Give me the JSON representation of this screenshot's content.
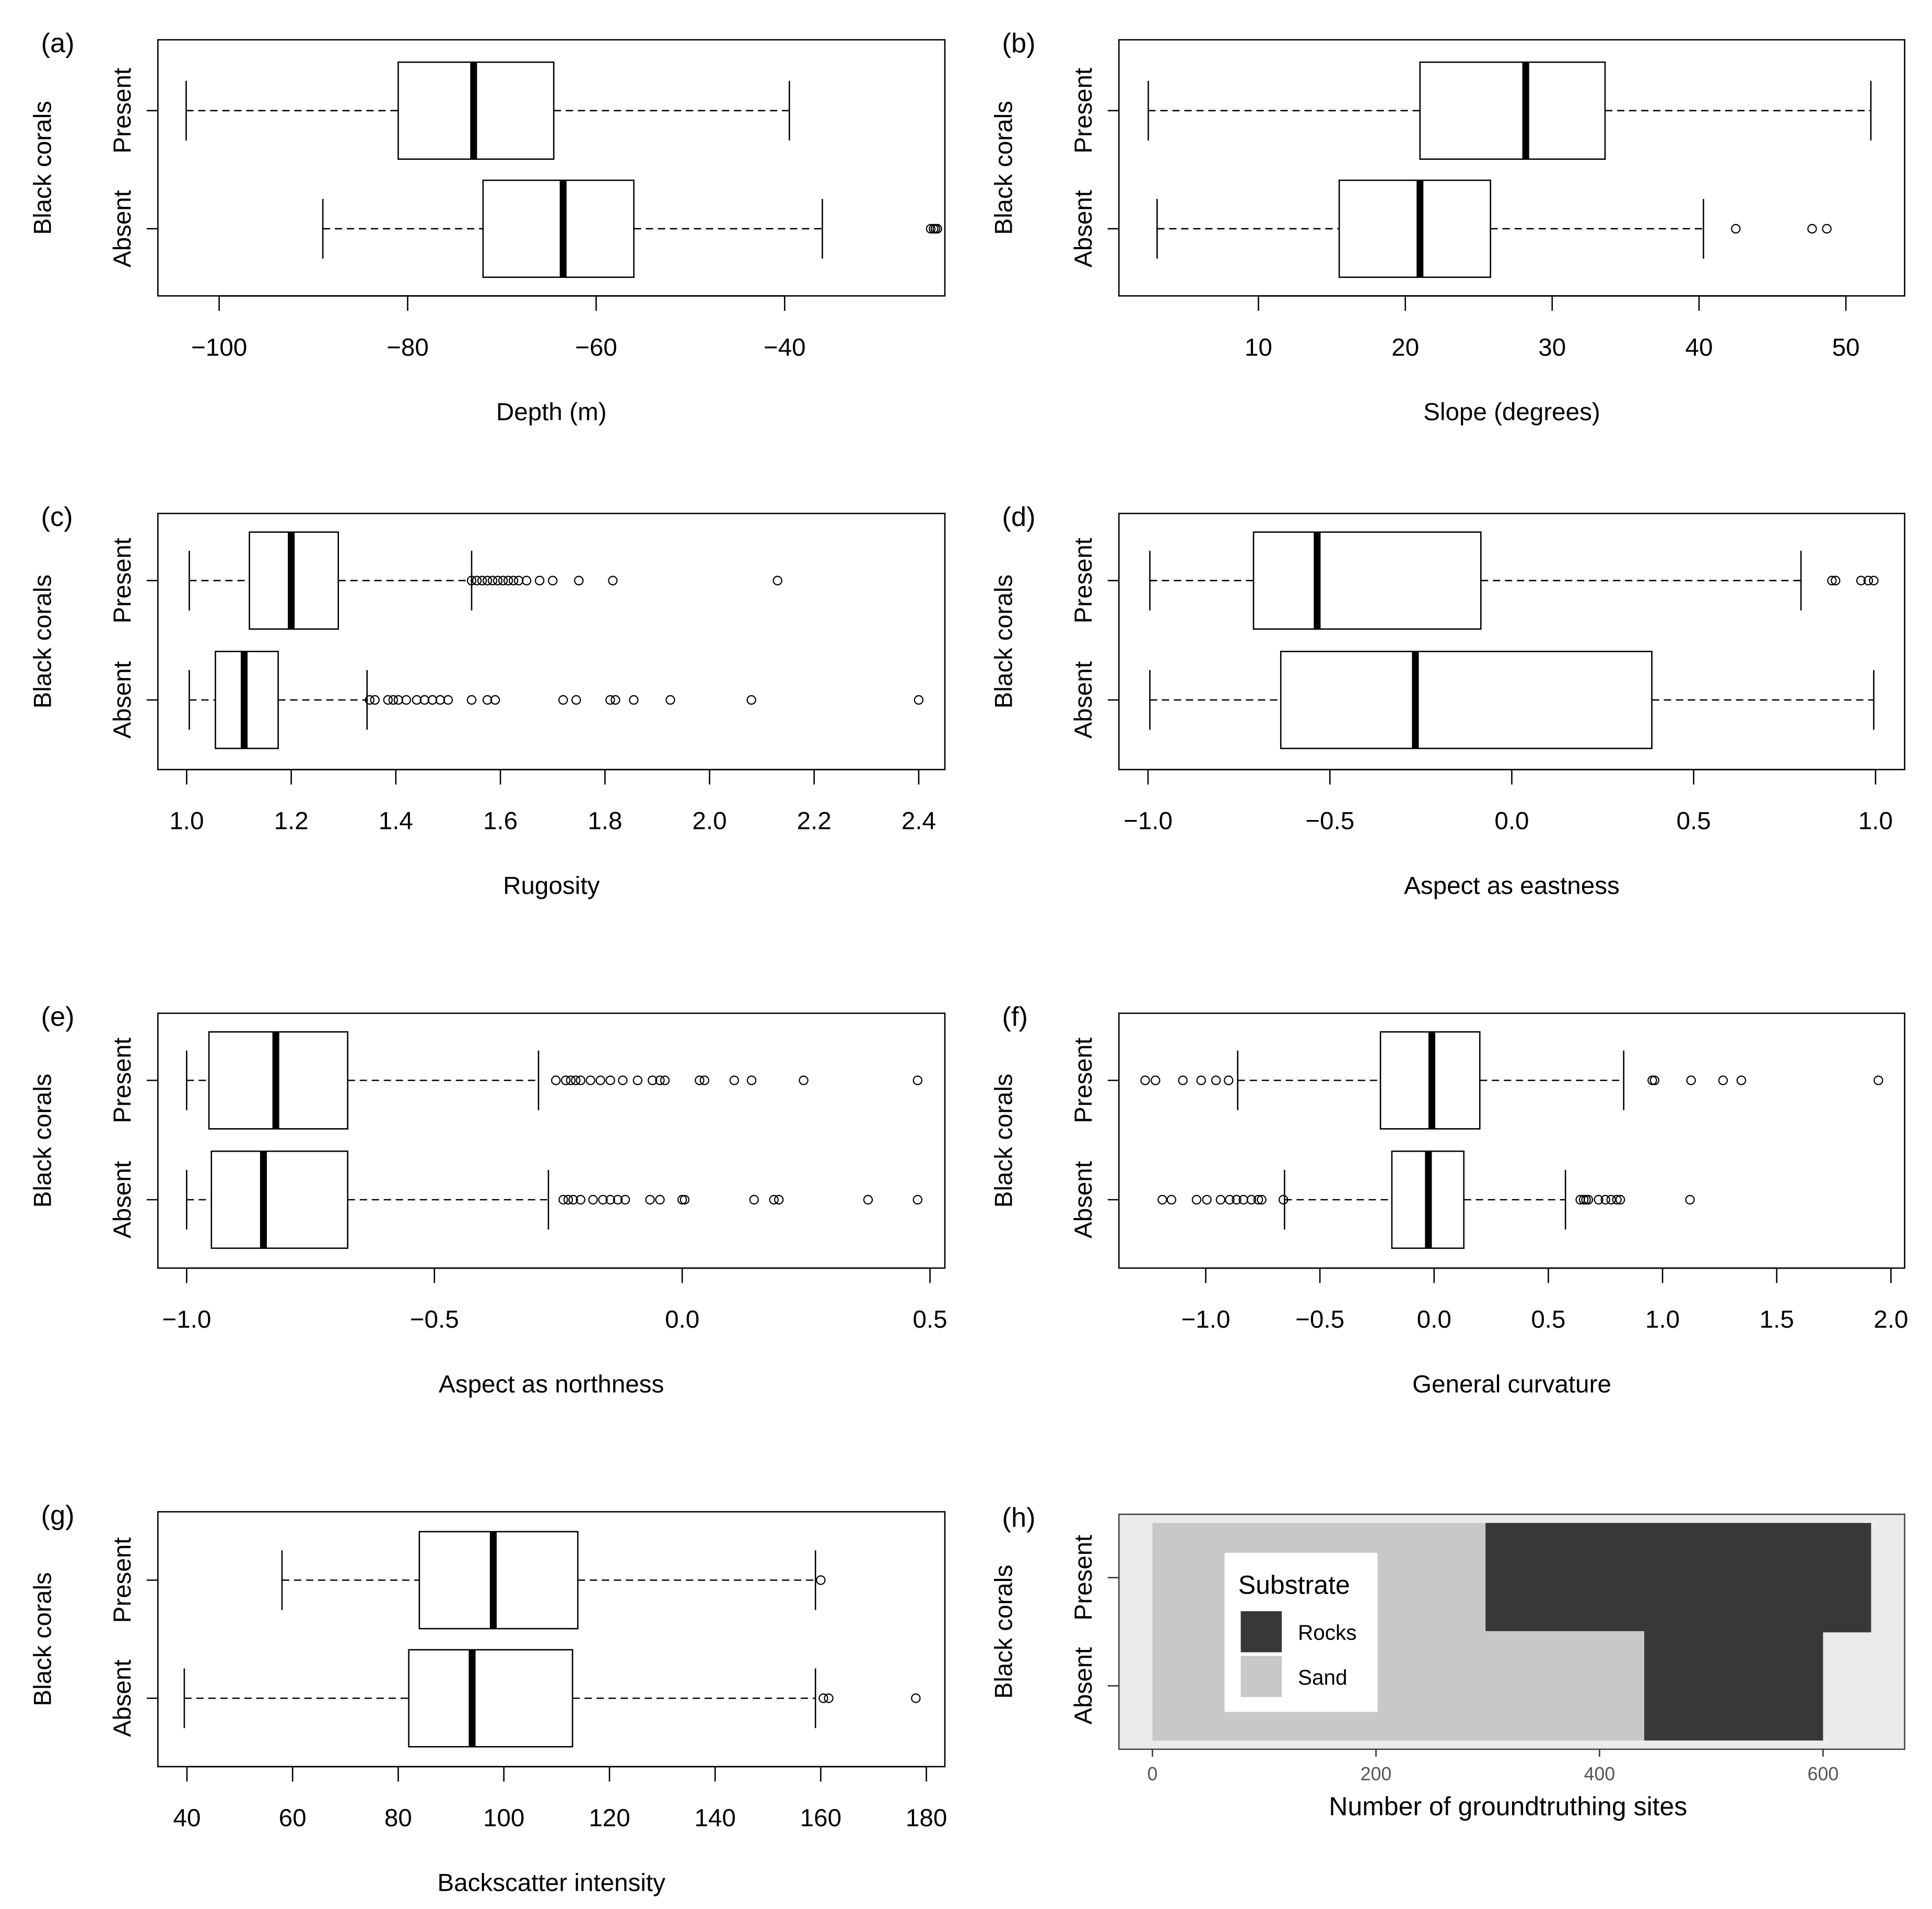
{
  "chart_data": [
    {
      "type": "boxplot",
      "panel_label": "(a)",
      "xlabel": "Depth (m)",
      "ylabel": "Black corals",
      "categories": [
        "Present",
        "Absent"
      ],
      "xlim": [
        -106.5,
        -23
      ],
      "xticks": [
        -100,
        -80,
        -60,
        -40
      ],
      "xtick_labels": [
        "−100",
        "−80",
        "−60",
        "−40"
      ],
      "boxes": [
        {
          "group": "Present",
          "whisker_low": -103.5,
          "q1": -81,
          "median": -73,
          "q3": -64.5,
          "whisker_high": -39.5,
          "outliers": []
        },
        {
          "group": "Absent",
          "whisker_low": -89,
          "q1": -72,
          "median": -63.5,
          "q3": -56,
          "whisker_high": -36,
          "outliers": [
            -24.5,
            -24.2,
            -24.0,
            -23.8
          ]
        }
      ]
    },
    {
      "type": "boxplot",
      "panel_label": "(b)",
      "xlabel": "Slope (degrees)",
      "ylabel": "Black corals",
      "categories": [
        "Present",
        "Absent"
      ],
      "xlim": [
        0.5,
        54
      ],
      "xticks": [
        10,
        20,
        30,
        40,
        50
      ],
      "xtick_labels": [
        "10",
        "20",
        "30",
        "40",
        "50"
      ],
      "boxes": [
        {
          "group": "Present",
          "whisker_low": 2.5,
          "q1": 21,
          "median": 28.2,
          "q3": 33.6,
          "whisker_high": 51.7,
          "outliers": []
        },
        {
          "group": "Absent",
          "whisker_low": 3.1,
          "q1": 15.5,
          "median": 21,
          "q3": 25.8,
          "whisker_high": 40.3,
          "outliers": [
            42.5,
            47.7,
            48.7
          ]
        }
      ]
    },
    {
      "type": "boxplot",
      "panel_label": "(c)",
      "xlabel": "Rugosity",
      "ylabel": "Black corals",
      "categories": [
        "Present",
        "Absent"
      ],
      "xlim": [
        0.945,
        2.45
      ],
      "xticks": [
        1.0,
        1.2,
        1.4,
        1.6,
        1.8,
        2.0,
        2.2,
        2.4
      ],
      "xtick_labels": [
        "1.0",
        "1.2",
        "1.4",
        "1.6",
        "1.8",
        "2.0",
        "2.2",
        "2.4"
      ],
      "boxes": [
        {
          "group": "Present",
          "whisker_low": 1.005,
          "q1": 1.12,
          "median": 1.2,
          "q3": 1.29,
          "whisker_high": 1.545,
          "outliers": [
            1.545,
            1.555,
            1.565,
            1.575,
            1.585,
            1.595,
            1.605,
            1.615,
            1.625,
            1.635,
            1.65,
            1.675,
            1.7,
            1.75,
            1.815,
            2.13
          ]
        },
        {
          "group": "Absent",
          "whisker_low": 1.005,
          "q1": 1.055,
          "median": 1.11,
          "q3": 1.175,
          "whisker_high": 1.345,
          "outliers": [
            1.35,
            1.36,
            1.385,
            1.395,
            1.405,
            1.42,
            1.44,
            1.455,
            1.47,
            1.485,
            1.5,
            1.545,
            1.575,
            1.59,
            1.72,
            1.745,
            1.81,
            1.82,
            1.855,
            1.925,
            2.08,
            2.4
          ]
        }
      ]
    },
    {
      "type": "boxplot",
      "panel_label": "(d)",
      "xlabel": "Aspect as eastness",
      "ylabel": "Black corals",
      "categories": [
        "Present",
        "Absent"
      ],
      "xlim": [
        -1.08,
        1.08
      ],
      "xticks": [
        -1.0,
        -0.5,
        0.0,
        0.5,
        1.0
      ],
      "xtick_labels": [
        "−1.0",
        "−0.5",
        "0.0",
        "0.5",
        "1.0"
      ],
      "boxes": [
        {
          "group": "Present",
          "whisker_low": -0.995,
          "q1": -0.71,
          "median": -0.535,
          "q3": -0.085,
          "whisker_high": 0.795,
          "outliers": [
            0.88,
            0.89,
            0.96,
            0.98,
            0.995
          ]
        },
        {
          "group": "Absent",
          "whisker_low": -0.995,
          "q1": -0.635,
          "median": -0.265,
          "q3": 0.385,
          "whisker_high": 0.995,
          "outliers": []
        }
      ]
    },
    {
      "type": "boxplot",
      "panel_label": "(e)",
      "xlabel": "Aspect as northness",
      "ylabel": "Black corals",
      "categories": [
        "Present",
        "Absent"
      ],
      "xlim": [
        -1.058,
        0.53
      ],
      "xticks": [
        -1.0,
        -0.5,
        0.0,
        0.5
      ],
      "xtick_labels": [
        "−1.0",
        "−0.5",
        "0.0",
        "0.5"
      ],
      "boxes": [
        {
          "group": "Present",
          "whisker_low": -1.0,
          "q1": -0.955,
          "median": -0.82,
          "q3": -0.675,
          "whisker_high": -0.29,
          "outliers": [
            -0.255,
            -0.235,
            -0.225,
            -0.215,
            -0.205,
            -0.185,
            -0.165,
            -0.145,
            -0.12,
            -0.09,
            -0.06,
            -0.045,
            -0.035,
            0.035,
            0.045,
            0.105,
            0.14,
            0.245,
            0.475
          ]
        },
        {
          "group": "Absent",
          "whisker_low": -1.0,
          "q1": -0.95,
          "median": -0.845,
          "q3": -0.675,
          "whisker_high": -0.27,
          "outliers": [
            -0.24,
            -0.23,
            -0.22,
            -0.205,
            -0.18,
            -0.16,
            -0.145,
            -0.13,
            -0.115,
            -0.065,
            -0.045,
            0.0,
            0.005,
            0.145,
            0.185,
            0.195,
            0.375,
            0.475
          ]
        }
      ]
    },
    {
      "type": "boxplot",
      "panel_label": "(f)",
      "xlabel": "General curvature",
      "ylabel": "Black corals",
      "categories": [
        "Present",
        "Absent"
      ],
      "xlim": [
        -1.38,
        2.06
      ],
      "xticks": [
        -1.0,
        -0.5,
        0.0,
        0.5,
        1.0,
        1.5,
        2.0
      ],
      "xtick_labels": [
        "−1.0",
        "−0.5",
        "0.0",
        "0.5",
        "1.0",
        "1.5",
        "2.0"
      ],
      "boxes": [
        {
          "group": "Present",
          "whisker_low": -0.86,
          "q1": -0.235,
          "median": -0.01,
          "q3": 0.2,
          "whisker_high": 0.83,
          "outliers": [
            -1.265,
            -1.22,
            -1.1,
            -1.02,
            -0.955,
            -0.9,
            0.955,
            0.965,
            1.125,
            1.265,
            1.345,
            1.945
          ]
        },
        {
          "group": "Absent",
          "whisker_low": -0.655,
          "q1": -0.185,
          "median": -0.025,
          "q3": 0.13,
          "whisker_high": 0.575,
          "outliers": [
            -1.19,
            -1.15,
            -1.04,
            -0.995,
            -0.935,
            -0.895,
            -0.865,
            -0.835,
            -0.8,
            -0.77,
            -0.755,
            -0.66,
            0.64,
            0.655,
            0.665,
            0.675,
            0.72,
            0.75,
            0.775,
            0.8,
            0.815,
            1.12
          ]
        }
      ]
    },
    {
      "type": "boxplot",
      "panel_label": "(g)",
      "xlabel": "Backscatter intensity",
      "ylabel": "Black corals",
      "categories": [
        "Present",
        "Absent"
      ],
      "xlim": [
        34.5,
        183.5
      ],
      "xticks": [
        40,
        60,
        80,
        100,
        120,
        140,
        160,
        180
      ],
      "xtick_labels": [
        "40",
        "60",
        "80",
        "100",
        "120",
        "140",
        "160",
        "180"
      ],
      "boxes": [
        {
          "group": "Present",
          "whisker_low": 58,
          "q1": 84,
          "median": 98,
          "q3": 114,
          "whisker_high": 159,
          "outliers": [
            160
          ]
        },
        {
          "group": "Absent",
          "whisker_low": 39.5,
          "q1": 82,
          "median": 94,
          "q3": 113,
          "whisker_high": 159,
          "outliers": [
            160.5,
            161.5,
            178
          ]
        }
      ]
    },
    {
      "type": "stacked_bar_horizontal",
      "panel_label": "(h)",
      "xlabel": "Number of groundtruthing sites",
      "ylabel": "Black corals",
      "categories": [
        "Present",
        "Absent"
      ],
      "xlim": [
        -30,
        673
      ],
      "xticks": [
        0,
        200,
        400,
        600
      ],
      "xtick_labels": [
        "0",
        "200",
        "400",
        "600"
      ],
      "legend": {
        "title": "Substrate",
        "entries": [
          "Rocks",
          "Sand"
        ],
        "placement": "top-left inside"
      },
      "colors": {
        "Rocks": "#383838",
        "Sand": "#c8c8c8",
        "panel_bg": "#ebebeb"
      },
      "series": [
        {
          "name": "Sand",
          "values": [
            298,
            440
          ]
        },
        {
          "name": "Rocks",
          "values": [
            345,
            160
          ]
        }
      ]
    }
  ]
}
